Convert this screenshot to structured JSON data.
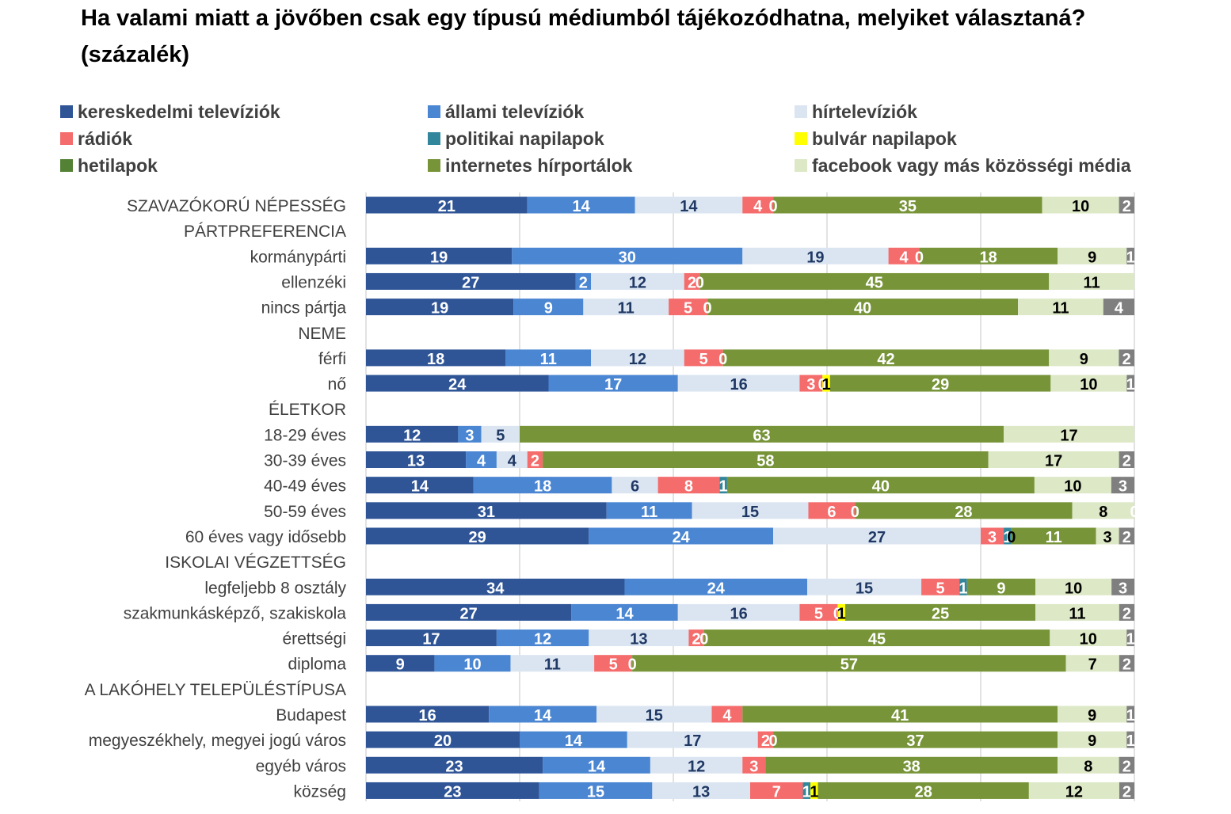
{
  "title": "Ha valami miatt a jövőben csak egy típusú médiumból tájékozódhatna,  melyiket választaná? (százalék)",
  "chart_data": {
    "type": "bar",
    "orientation": "horizontal",
    "stacked": true,
    "percent_scale": true,
    "title": "Ha valami miatt a jövőben csak egy típusú médiumból tájékozódhatna,  melyiket választaná? (százalék)",
    "xlim": [
      0,
      100
    ],
    "grid": true,
    "legend_position": "top",
    "series": [
      {
        "name": "kereskedelmi televíziók",
        "color": "#2f5597",
        "label_color": "#ffffff"
      },
      {
        "name": "állami televíziók",
        "color": "#4a86d2",
        "label_color": "#ffffff"
      },
      {
        "name": "hírtelevíziók",
        "color": "#dbe5f1",
        "label_color": "#1f3864"
      },
      {
        "name": "rádiók",
        "color": "#f46c6c",
        "label_color": "#ffffff"
      },
      {
        "name": "politikai napilapok",
        "color": "#31869b",
        "label_color": "#ffffff"
      },
      {
        "name": "bulvár napilapok",
        "color": "#ffff00",
        "label_color": "#000000"
      },
      {
        "name": "hetilapok",
        "color": "#548235",
        "label_color": "#ffffff"
      },
      {
        "name": "internetes hírportálok",
        "color": "#779438",
        "label_color": "#ffffff"
      },
      {
        "name": "facebook vagy más közösségi média",
        "color": "#dde8c6",
        "label_color": "#000000"
      },
      {
        "name": "",
        "color": "#7f7f7f",
        "label_color": "#ffffff"
      }
    ],
    "rows": [
      {
        "label": "SZAVAZÓKORÚ NÉPESSÉG",
        "values": [
          21,
          14,
          14,
          4,
          0,
          null,
          null,
          35,
          10,
          2
        ]
      },
      {
        "label": "PÁRTPREFERENCIA",
        "header": true
      },
      {
        "label": "kormánypárti",
        "values": [
          19,
          30,
          19,
          4,
          0,
          null,
          null,
          18,
          9,
          1
        ]
      },
      {
        "label": "ellenzéki",
        "values": [
          27,
          2,
          12,
          2,
          0,
          null,
          null,
          45,
          11,
          null
        ]
      },
      {
        "label": "nincs pártja",
        "values": [
          19,
          9,
          11,
          5,
          0,
          null,
          null,
          40,
          11,
          4
        ]
      },
      {
        "label": "NEME",
        "header": true
      },
      {
        "label": "férfi",
        "values": [
          18,
          11,
          12,
          5,
          0,
          null,
          null,
          42,
          9,
          2
        ]
      },
      {
        "label": "nő",
        "values": [
          24,
          17,
          16,
          3,
          0,
          1,
          null,
          29,
          10,
          1
        ]
      },
      {
        "label": "ÉLETKOR",
        "header": true
      },
      {
        "label": "18-29 éves",
        "values": [
          12,
          3,
          5,
          null,
          null,
          null,
          null,
          63,
          17,
          null
        ]
      },
      {
        "label": "30-39 éves",
        "values": [
          13,
          4,
          4,
          2,
          null,
          null,
          null,
          58,
          17,
          2
        ]
      },
      {
        "label": "40-49 éves",
        "values": [
          14,
          18,
          6,
          8,
          1,
          null,
          null,
          40,
          10,
          3
        ]
      },
      {
        "label": "50-59 éves",
        "values": [
          31,
          11,
          15,
          6,
          0,
          null,
          null,
          28,
          8,
          0
        ]
      },
      {
        "label": "60 éves vagy idősebb",
        "values": [
          29,
          24,
          27,
          3,
          1,
          0,
          null,
          11,
          3,
          2
        ]
      },
      {
        "label": "ISKOLAI VÉGZETTSÉG",
        "header": true
      },
      {
        "label": "legfeljebb 8 osztály",
        "values": [
          34,
          24,
          15,
          5,
          1,
          null,
          null,
          9,
          10,
          3
        ]
      },
      {
        "label": "szakmunkásképző, szakiskola",
        "values": [
          27,
          14,
          16,
          5,
          0,
          1,
          null,
          25,
          11,
          2
        ]
      },
      {
        "label": "érettségi",
        "values": [
          17,
          12,
          13,
          2,
          0,
          null,
          null,
          45,
          10,
          1
        ]
      },
      {
        "label": "diploma",
        "values": [
          9,
          10,
          11,
          5,
          0,
          null,
          null,
          57,
          7,
          2
        ]
      },
      {
        "label": "A LAKÓHELY TELEPÜLÉSTÍPUSA",
        "header": true
      },
      {
        "label": "Budapest",
        "values": [
          16,
          14,
          15,
          4,
          null,
          null,
          null,
          41,
          9,
          1
        ]
      },
      {
        "label": "megyeszékhely, megyei jogú város",
        "values": [
          20,
          14,
          17,
          2,
          0,
          null,
          null,
          37,
          9,
          1
        ]
      },
      {
        "label": "egyéb város",
        "values": [
          23,
          14,
          12,
          3,
          null,
          null,
          null,
          38,
          8,
          2
        ]
      },
      {
        "label": "község",
        "values": [
          23,
          15,
          13,
          7,
          1,
          1,
          null,
          28,
          12,
          2
        ]
      }
    ]
  }
}
